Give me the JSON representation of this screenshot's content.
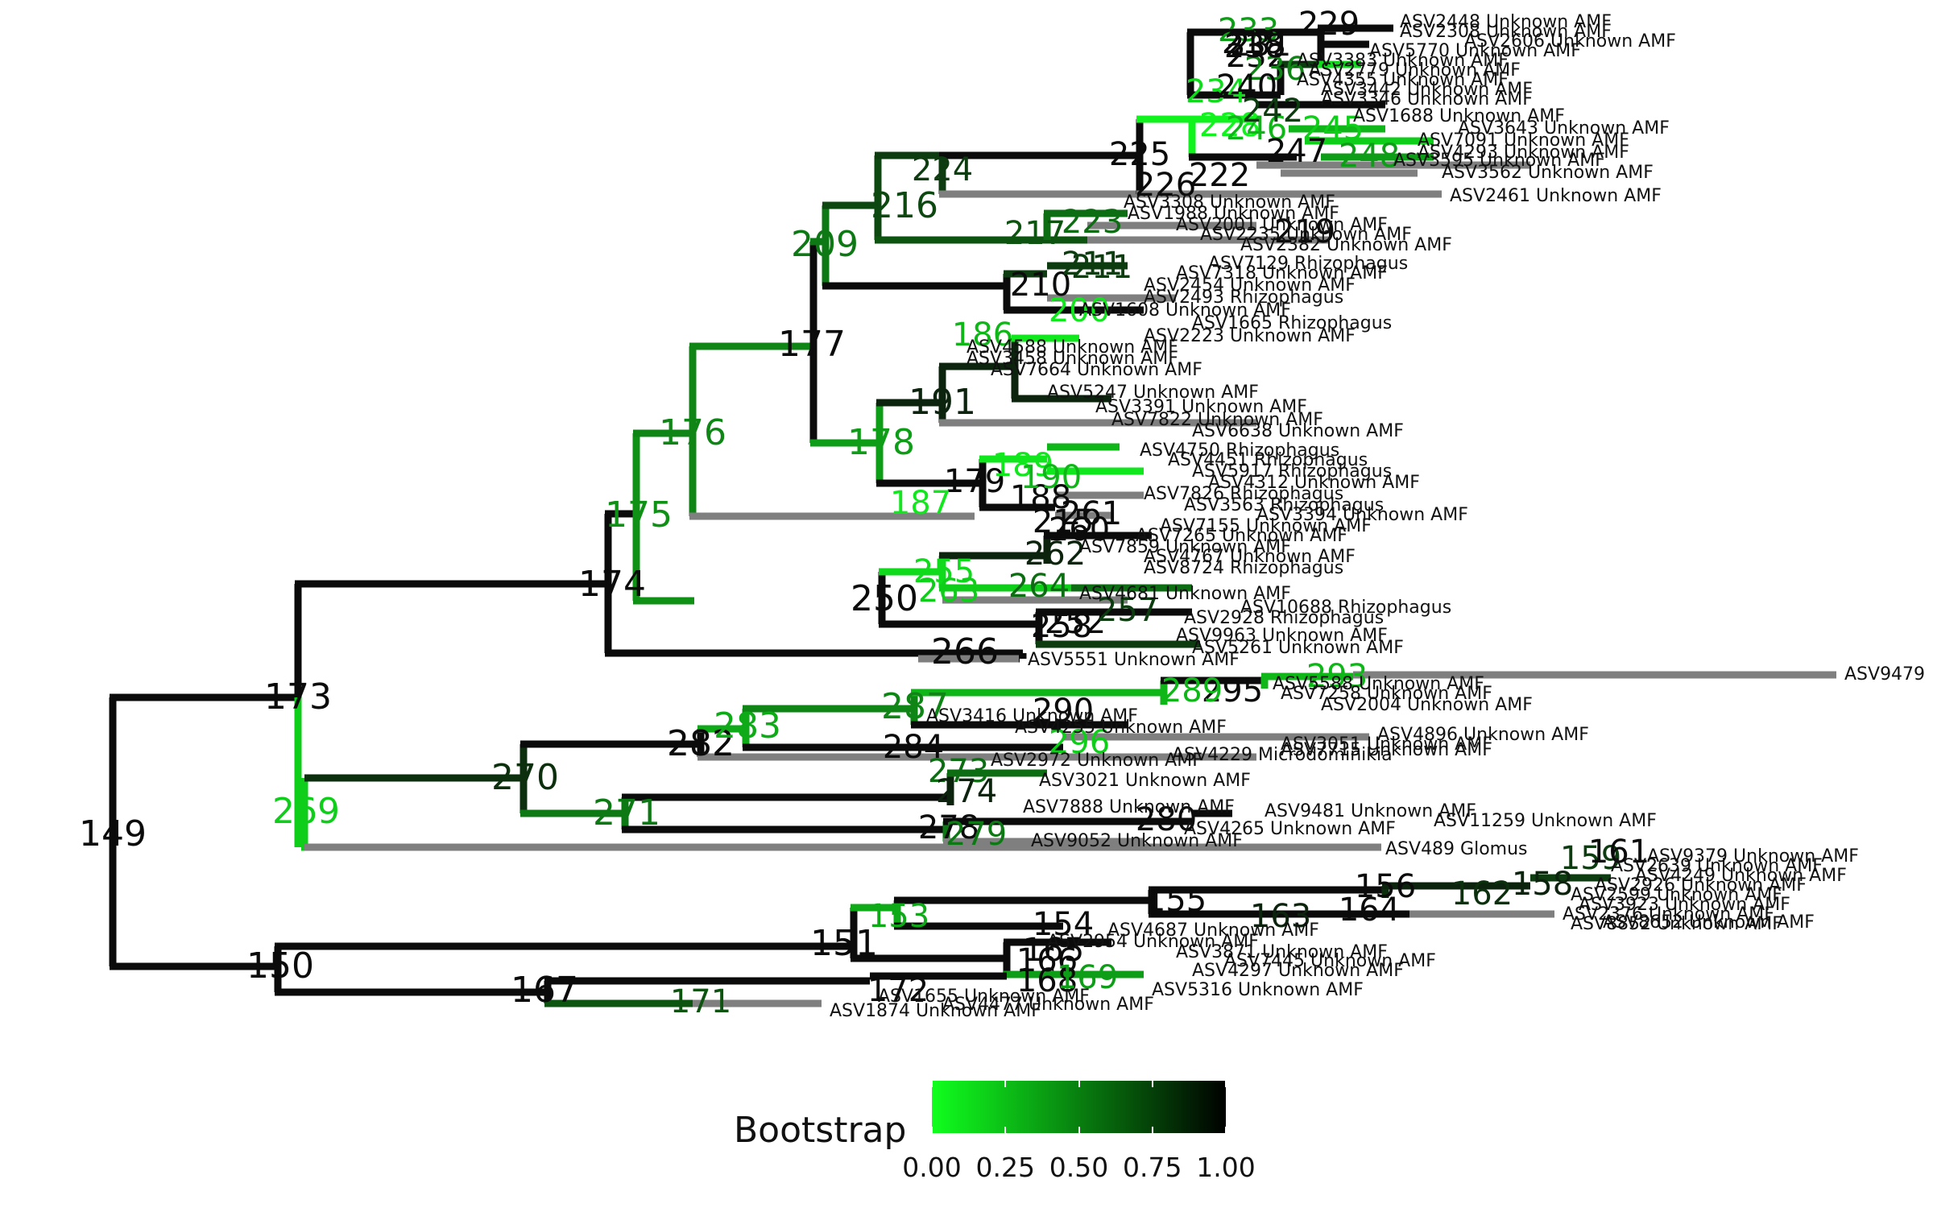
{
  "legend": {
    "title": "Bootstrap",
    "labels": [
      "0.00",
      "0.25",
      "0.50",
      "0.75",
      "1.00"
    ],
    "gradient_low": "#10ff1e",
    "gradient_high": "#000000"
  },
  "colors": {
    "bootstrap_low": "#10ff1e",
    "bootstrap_high": "#0b0b0b",
    "terminal_branch": "#7f7f7f"
  },
  "nodes": [
    {
      "label": "149",
      "b": 1.0
    },
    {
      "label": "150",
      "b": 1.0
    },
    {
      "label": "173",
      "b": 1.0
    },
    {
      "label": "269",
      "b": 0.2
    },
    {
      "label": "174",
      "b": 1.0
    },
    {
      "label": "175",
      "b": 0.45
    },
    {
      "label": "176",
      "b": 0.5
    },
    {
      "label": "177",
      "b": 1.0
    },
    {
      "label": "209",
      "b": 0.55
    },
    {
      "label": "216",
      "b": 0.75
    },
    {
      "label": "224",
      "b": 0.8
    },
    {
      "label": "225",
      "b": 1.0
    },
    {
      "label": "226",
      "b": 1.0
    },
    {
      "label": "228",
      "b": 0.05
    },
    {
      "label": "178",
      "b": 0.4
    },
    {
      "label": "179",
      "b": 1.0
    },
    {
      "label": "191",
      "b": 0.9
    },
    {
      "label": "250",
      "b": 1.0
    },
    {
      "label": "255",
      "b": 0.15
    },
    {
      "label": "263",
      "b": 0.2
    },
    {
      "label": "264",
      "b": 0.6
    },
    {
      "label": "266",
      "b": 1.0
    },
    {
      "label": "270",
      "b": 0.85
    },
    {
      "label": "271",
      "b": 0.55
    },
    {
      "label": "282",
      "b": 1.0
    },
    {
      "label": "283",
      "b": 0.35
    },
    {
      "label": "284",
      "b": 1.0
    },
    {
      "label": "287",
      "b": 0.5
    },
    {
      "label": "278",
      "b": 1.0
    },
    {
      "label": "279",
      "b": 0.55
    },
    {
      "label": "280",
      "b": 1.0
    },
    {
      "label": "151",
      "b": 1.0
    },
    {
      "label": "153",
      "b": 0.35
    },
    {
      "label": "154",
      "b": 1.0
    },
    {
      "label": "155",
      "b": 1.0
    },
    {
      "label": "156",
      "b": 1.0
    },
    {
      "label": "162",
      "b": 0.85
    },
    {
      "label": "163",
      "b": 0.9
    },
    {
      "label": "164",
      "b": 1.0
    },
    {
      "label": "167",
      "b": 1.0
    },
    {
      "label": "168",
      "b": 1.0
    },
    {
      "label": "171",
      "b": 0.7
    },
    {
      "label": "210",
      "b": 1.0
    },
    {
      "label": "211",
      "b": 0.8
    },
    {
      "label": "217",
      "b": 0.7
    },
    {
      "label": "223",
      "b": 0.6
    },
    {
      "label": "186",
      "b": 0.3
    },
    {
      "label": "187",
      "b": 0.1
    },
    {
      "label": "188",
      "b": 1.0
    },
    {
      "label": "189",
      "b": 0.1
    },
    {
      "label": "190",
      "b": 0.3
    },
    {
      "label": "200",
      "b": 0.1
    },
    {
      "label": "211",
      "b": 0.8
    },
    {
      "label": "222",
      "b": 1.0
    },
    {
      "label": "246",
      "b": 0.3
    },
    {
      "label": "248",
      "b": 0.4
    },
    {
      "label": "245",
      "b": 0.2
    },
    {
      "label": "247",
      "b": 1.0
    },
    {
      "label": "233",
      "b": 0.4
    },
    {
      "label": "293",
      "b": 0.3
    },
    {
      "label": "295",
      "b": 1.0
    },
    {
      "label": "289",
      "b": 0.3
    },
    {
      "label": "290",
      "b": 1.0
    },
    {
      "label": "296",
      "b": 0.2
    },
    {
      "label": "273",
      "b": 0.6
    },
    {
      "label": "274",
      "b": 0.9
    },
    {
      "label": "165",
      "b": 1.0
    },
    {
      "label": "166",
      "b": 1.0
    },
    {
      "label": "169",
      "b": 0.4
    },
    {
      "label": "172",
      "b": 1.0
    },
    {
      "label": "158",
      "b": 0.9
    },
    {
      "label": "159",
      "b": 0.8
    },
    {
      "label": "161",
      "b": 1.0
    },
    {
      "label": "252",
      "b": 1.0
    },
    {
      "label": "257",
      "b": 0.8
    },
    {
      "label": "258",
      "b": 1.0
    },
    {
      "label": "260",
      "b": 1.0
    },
    {
      "label": "261",
      "b": 1.0
    },
    {
      "label": "262",
      "b": 0.9
    },
    {
      "label": "215",
      "b": 1.0
    },
    {
      "label": "218",
      "b": 1.0
    },
    {
      "label": "219",
      "b": 1.0
    },
    {
      "label": "229",
      "b": 1.0
    },
    {
      "label": "231",
      "b": 1.0
    },
    {
      "label": "232",
      "b": 1.0
    },
    {
      "label": "234",
      "b": 0.15
    },
    {
      "label": "236",
      "b": 0.5
    },
    {
      "label": "238",
      "b": 1.0
    },
    {
      "label": "240",
      "b": 1.0
    },
    {
      "label": "242",
      "b": 0.8
    }
  ],
  "tips": [
    "ASV2448 Unknown AMF",
    "ASV2308 Unknown AMF",
    "ASV2606 Unknown AMF",
    "ASV5770 Unknown AMF",
    "ASV3383 Unknown AMF",
    "ASV2779 Unknown AMF",
    "ASV4355 Unknown AMF",
    "ASV3442 Unknown AMF",
    "ASV3346 Unknown AMF",
    "ASV1688 Unknown AMF",
    "ASV3643 Unknown AMF",
    "ASV7091 Unknown AMF",
    "ASV4293 Unknown AMF",
    "ASV3595 Unknown AMF",
    "ASV3562 Unknown AMF",
    "ASV2461 Unknown AMF",
    "ASV3308 Unknown AMF",
    "ASV1988 Unknown AMF",
    "ASV2001 Unknown AMF",
    "ASV2235 Unknown AMF",
    "ASV2382 Unknown AMF",
    "ASV7129 Rhizophagus",
    "ASV7318 Unknown AMF",
    "ASV2454 Unknown AMF",
    "ASV2493 Rhizophagus",
    "ASV1608 Unknown AMF",
    "ASV1665 Rhizophagus",
    "ASV2223 Unknown AMF",
    "ASV4588 Unknown AMF",
    "ASV3458 Unknown AMF",
    "ASV7664 Unknown AMF",
    "ASV5247 Unknown AMF",
    "ASV3391 Unknown AMF",
    "ASV7822 Unknown AMF",
    "ASV6638 Unknown AMF",
    "ASV4750 Rhizophagus",
    "ASV4451 Rhizophagus",
    "ASV5917 Rhizophagus",
    "ASV4312 Unknown AMF",
    "ASV7826 Rhizophagus",
    "ASV3563 Rhizophagus",
    "ASV3394 Unknown AMF",
    "ASV7155 Unknown AMF",
    "ASV7265 Unknown AMF",
    "ASV7859 Unknown AMF",
    "ASV4767 Unknown AMF",
    "ASV8724 Rhizophagus",
    "ASV4681 Unknown AMF",
    "ASV10688 Rhizophagus",
    "ASV2928 Rhizophagus",
    "ASV9963 Unknown AMF",
    "ASV5261 Unknown AMF",
    "ASV5551 Unknown AMF",
    "ASV9479",
    "ASV5588 Unknown AMF",
    "ASV7258 Unknown AMF",
    "ASV2004 Unknown AMF",
    "ASV3416 Unknown AMF",
    "ASV4255 Unknown AMF",
    "ASV4896 Unknown AMF",
    "ASV3051 Unknown AMF",
    "ASV4229 Microdominikia",
    "ASV7715 Unknown AMF",
    "ASV2972 Unknown AMF",
    "ASV3021 Unknown AMF",
    "ASV9481 Unknown AMF",
    "ASV11259 Unknown AMF",
    "ASV7888 Unknown AMF",
    "ASV4265 Unknown AMF",
    "ASV9052 Unknown AMF",
    "ASV489 Glomus",
    "ASV9379 Unknown AMF",
    "ASV2639 Unknown AMF",
    "ASV4249 Unknown AMF",
    "ASV2926 Unknown AMF",
    "ASV2599 Unknown AMF",
    "ASV3923 Unknown AMF",
    "ASV2376 Unknown AMF",
    "ASV8852 Unknown AMF",
    "ASV8652 Unknown AMF",
    "ASV4687 Unknown AMF",
    "ASV2954 Unknown AMF",
    "ASV3871 Unknown AMF",
    "ASV7445 Unknown AMF",
    "ASV4297 Unknown AMF",
    "ASV5316 Unknown AMF",
    "ASV1655 Unknown AMF",
    "ASV4477 Unknown AMF",
    "ASV1874 Unknown AMF"
  ]
}
